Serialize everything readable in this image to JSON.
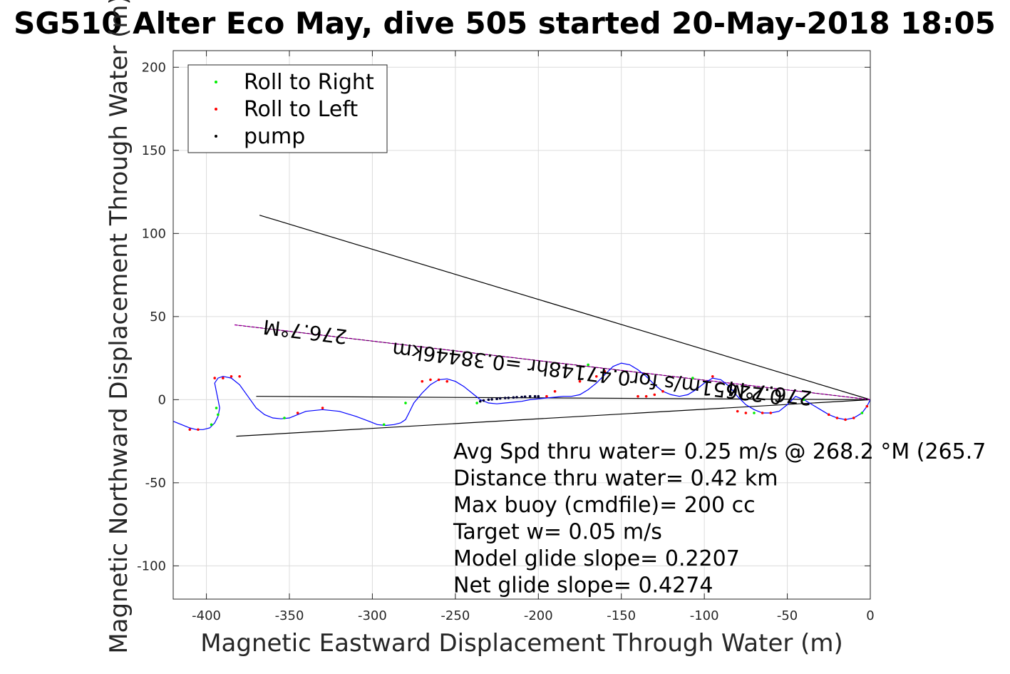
{
  "chart_data": {
    "type": "line",
    "title": "SG510 Alter Eco May, dive 505 started 20-May-2018 18:05",
    "xlabel": "Magnetic Eastward Displacement Through Water (m)",
    "ylabel": "Magnetic Northward Displacement Through Water (m)",
    "xlim": [
      -420,
      0
    ],
    "ylim": [
      -120,
      210
    ],
    "xticks": [
      -400,
      -350,
      -300,
      -250,
      -200,
      -150,
      -100,
      -50,
      0
    ],
    "yticks": [
      200,
      150,
      100,
      50,
      0,
      -50,
      -100
    ],
    "xtick_labels": [
      "-400",
      "-350",
      "-300",
      "-250",
      "-200",
      "-150",
      "-100",
      "-50",
      "0"
    ],
    "ytick_labels": [
      "200",
      "150",
      "100",
      "50",
      "0",
      "-50",
      "-100"
    ],
    "grid": true,
    "legend": {
      "position": "top-left",
      "entries": [
        {
          "label": "Roll to Right",
          "color": "#00ee00",
          "marker": "dot"
        },
        {
          "label": "Roll to Left",
          "color": "#ff0000",
          "marker": "dot"
        },
        {
          "label": "pump",
          "color": "#000000",
          "marker": "dot"
        }
      ]
    },
    "track": {
      "color": "#0000ff",
      "x": [
        0,
        -2,
        -5,
        -10,
        -15,
        -20,
        -25,
        -30,
        -35,
        -40,
        -45,
        -50,
        -55,
        -60,
        -65,
        -70,
        -75,
        -80,
        -85,
        -90,
        -95,
        -100,
        -105,
        -110,
        -115,
        -120,
        -125,
        -130,
        -135,
        -140,
        -145,
        -150,
        -155,
        -160,
        -165,
        -170,
        -175,
        -180,
        -185,
        -190,
        -195,
        -200,
        -205,
        -210,
        -215,
        -220,
        -225,
        -230,
        -235,
        -240,
        -245,
        -250,
        -255,
        -260,
        -265,
        -270,
        -275,
        -278,
        -280,
        -283,
        -287,
        -292,
        -297,
        -302,
        -310,
        -320,
        -330,
        -340,
        -345,
        -350,
        -355,
        -360,
        -365,
        -370,
        -375,
        -380,
        -385,
        -390,
        -393,
        -395,
        -394,
        -393,
        -392,
        -393,
        -395,
        -398,
        -402,
        -406,
        -410,
        -415,
        -420
      ],
      "y": [
        0,
        -4,
        -8,
        -11,
        -12,
        -11,
        -9,
        -6,
        -3,
        0,
        2,
        -3,
        -7,
        -8,
        -8,
        -6,
        -3,
        2,
        8,
        12,
        13,
        10,
        6,
        3,
        2,
        3,
        5,
        9,
        14,
        18,
        21,
        22,
        20,
        15,
        10,
        6,
        3,
        2,
        2,
        1.5,
        1,
        0.5,
        0,
        -1,
        -1.5,
        -2,
        -2.5,
        -2,
        0,
        4,
        8,
        11,
        12.5,
        12,
        9,
        4,
        -2,
        -8,
        -12,
        -14,
        -15,
        -15.5,
        -15,
        -13,
        -10,
        -7,
        -6,
        -7,
        -9,
        -11,
        -11.5,
        -11,
        -9,
        -5,
        2,
        9,
        13,
        14,
        13,
        10,
        5,
        0,
        -5,
        -10,
        -14,
        -17,
        -18,
        -18,
        -17,
        -15,
        -13
      ]
    },
    "roll_right_points": {
      "color": "#00ee00",
      "x": [
        -5,
        -40,
        -70,
        -107,
        -170,
        -237,
        -280,
        -293,
        -353,
        -394,
        -393,
        -397
      ],
      "y": [
        -8,
        0,
        -8,
        13,
        21,
        -2,
        -2,
        -15,
        -11,
        -5,
        -9,
        -15
      ]
    },
    "roll_left_points": {
      "color": "#ff0000",
      "x": [
        -2,
        -10,
        -15,
        -20,
        -25,
        -60,
        -65,
        -75,
        -80,
        -95,
        -125,
        -130,
        -135,
        -140,
        -160,
        -165,
        -175,
        -190,
        -195,
        -255,
        -260,
        -265,
        -270,
        -380,
        -385,
        -390,
        -395,
        -405,
        -410,
        -330,
        -345
      ],
      "y": [
        -4,
        -11,
        -12,
        -11,
        -9,
        -8,
        -8,
        -8,
        -7,
        14,
        5,
        3,
        2,
        2,
        17,
        14,
        11,
        5,
        2,
        11,
        12,
        12,
        11,
        14,
        14,
        13,
        13,
        -18,
        -18,
        -5,
        -8
      ]
    },
    "pump_points": {
      "color": "#000033",
      "x": [
        -200,
        -202,
        -205,
        -208,
        -210,
        -213,
        -215,
        -218,
        -220,
        -223,
        -225,
        -228,
        -230,
        -233,
        -235
      ],
      "y": [
        2,
        2,
        2,
        1.8,
        1.6,
        1.5,
        1.3,
        1.1,
        1,
        0.8,
        0.5,
        0.2,
        0,
        -0.5,
        -1
      ]
    },
    "cone_lines": [
      {
        "name": "cone-upper",
        "color": "#000000",
        "x": [
          0,
          -368
        ],
        "y": [
          0,
          111
        ]
      },
      {
        "name": "cone-lower",
        "color": "#000000",
        "x": [
          0,
          -382
        ],
        "y": [
          0,
          -22
        ]
      },
      {
        "name": "cone-middle",
        "color": "#000000",
        "x": [
          0,
          -370
        ],
        "y": [
          0,
          2
        ]
      }
    ],
    "heading_line": {
      "color": "#ff00ff",
      "x": [
        0,
        -383
      ],
      "y": [
        0,
        45
      ]
    },
    "annotations": [
      {
        "text": "276.7°M",
        "x": -340,
        "y": 45,
        "rotation": 187
      },
      {
        "text": "0.22651m/s for0.47148hr =0.38446km",
        "x": -170,
        "y": 20,
        "rotation": 187
      },
      {
        "text": "276.7°M",
        "x": -60,
        "y": 8,
        "rotation": 187
      }
    ],
    "stats": [
      "Avg Spd thru water=  0.25 m/s @ 268.2 °M (265.7",
      "Distance thru water=  0.42 km",
      "Max buoy (cmdfile)= 200 cc",
      "Target w= 0.05 m/s",
      "Model glide slope= 0.2207",
      "Net glide slope= 0.4274"
    ]
  }
}
